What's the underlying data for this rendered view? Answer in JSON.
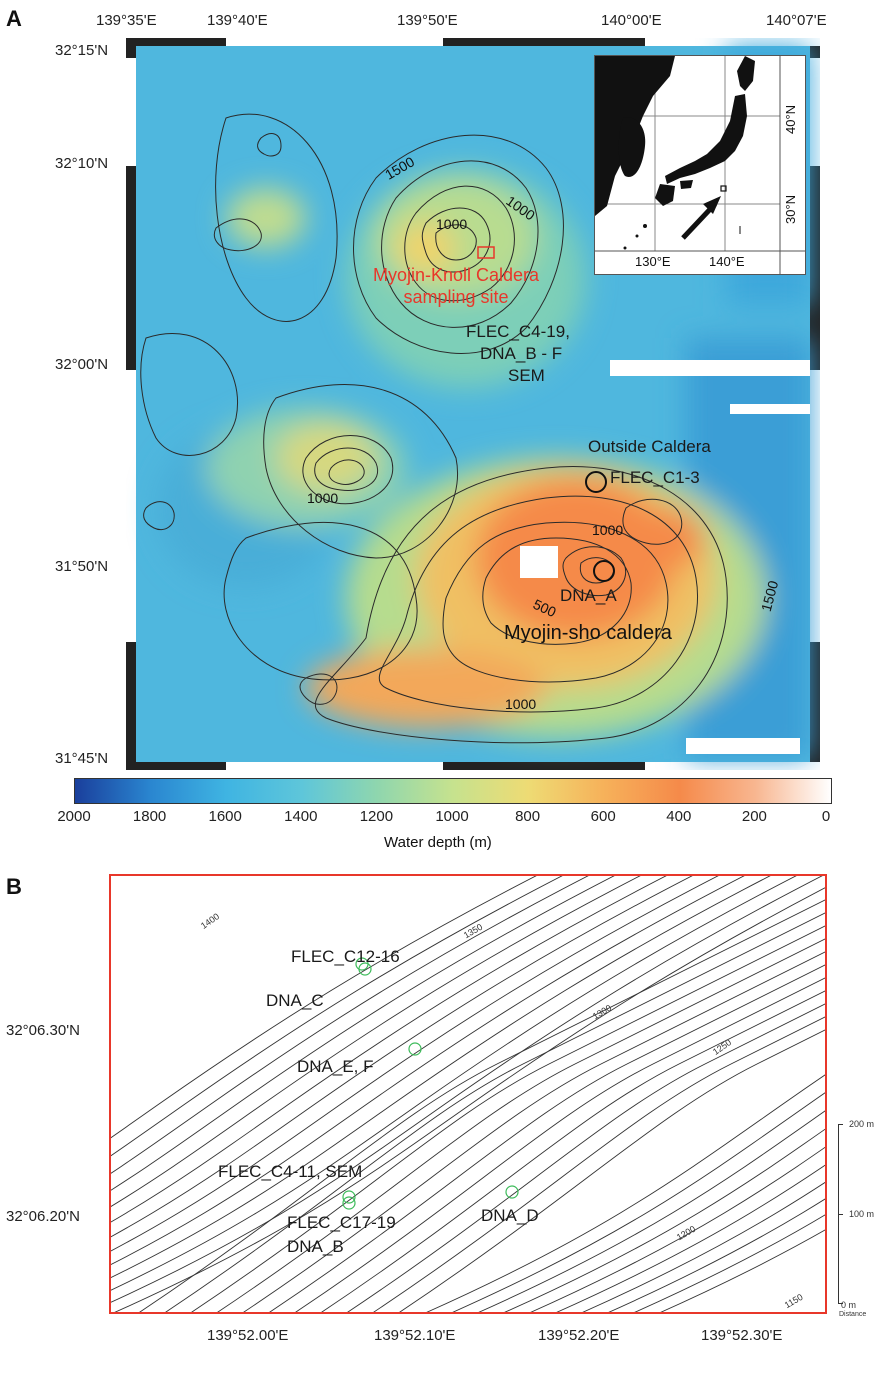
{
  "panel_a": {
    "letter": "A",
    "lon_ticks": [
      "139°35'E",
      "139°40'E",
      "139°50'E",
      "140°00'E",
      "140°07'E"
    ],
    "lat_ticks": [
      "32°15'N",
      "32°10'N",
      "32°00'N",
      "31°50'N",
      "31°45'N"
    ],
    "contour_labels": {
      "c1500_top": "1500",
      "c1000_a": "1000",
      "c1000_b": "1000",
      "c1000_c": "1000",
      "c1000_d": "1000",
      "c1000_e": "1000",
      "c500": "500",
      "c1500_right": "1500"
    },
    "site_label_line1": "Myojin-Knoll Caldera",
    "site_label_line2": "sampling site",
    "flec_c4_19": "FLEC_C4-19,",
    "dna_b_f": "DNA_B - F",
    "sem": "SEM",
    "outside_caldera": "Outside Caldera",
    "flec_c1_3": "FLEC_C1-3",
    "dna_a": "DNA_A",
    "myojin_sho": "Myojin-sho caldera",
    "inset": {
      "lat_40": "40°N",
      "lat_30": "30°N",
      "lon_130": "130°E",
      "lon_140": "140°E"
    },
    "colorbar": {
      "ticks": [
        "2000",
        "1800",
        "1600",
        "1400",
        "1200",
        "1000",
        "800",
        "600",
        "400",
        "200",
        "0"
      ],
      "label": "Water depth (m)",
      "colors": [
        "#1a3f9c",
        "#2a86d0",
        "#3fb4e2",
        "#5ec6da",
        "#8fd6ae",
        "#c6e28e",
        "#eedb74",
        "#f6b15a",
        "#f58a4a",
        "#f8b690",
        "#ffffff"
      ]
    }
  },
  "panel_b": {
    "letter": "B",
    "lon_ticks": [
      "139°52.00'E",
      "139°52.10'E",
      "139°52.20'E",
      "139°52.30'E"
    ],
    "lat_ticks": [
      "32°06.30'N",
      "32°06.20'N"
    ],
    "contour_labels": {
      "c1400": "1400",
      "c1350": "1350",
      "c1300": "1300",
      "c1250": "1250",
      "c1200": "1200",
      "c1150": "1150"
    },
    "labels": {
      "flec_c12_16": "FLEC_C12-16",
      "dna_c": "DNA_C",
      "dna_e_f": "DNA_E, F",
      "flec_c4_11_sem": "FLEC_C4-11, SEM",
      "flec_c17_19": "FLEC_C17-19",
      "dna_b": "DNA_B",
      "dna_d": "DNA_D"
    },
    "scale": {
      "s200": "200 m",
      "s100": "100 m",
      "s0": "0 m",
      "distance": "Distance"
    },
    "border_color": "#e8372a",
    "marker_color": "#3dbb5a"
  }
}
